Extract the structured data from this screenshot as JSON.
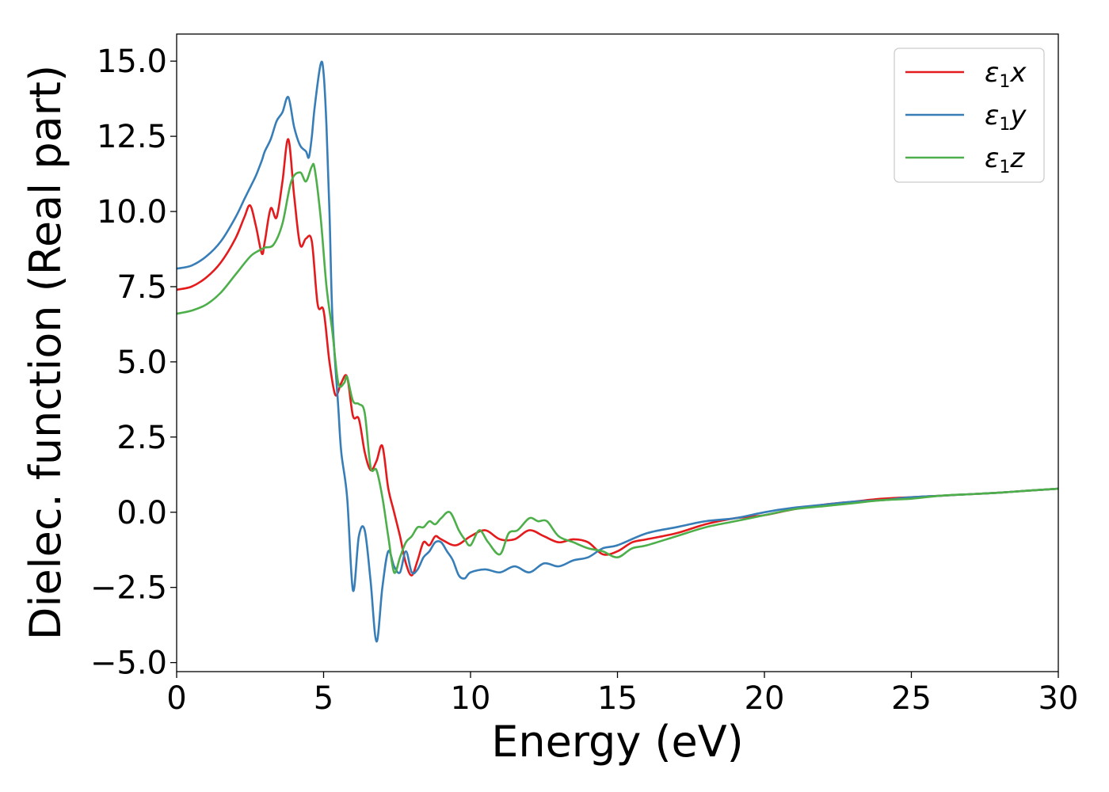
{
  "chart_data": {
    "type": "line",
    "xlabel": "Energy (eV)",
    "ylabel": "Dielec. function (Real part)",
    "xlim": [
      0,
      30
    ],
    "ylim": [
      -5.3,
      15.9
    ],
    "xticks": [
      0,
      5,
      10,
      15,
      20,
      25,
      30
    ],
    "xtick_labels": [
      "0",
      "5",
      "10",
      "15",
      "20",
      "25",
      "30"
    ],
    "yticks": [
      -5.0,
      -2.5,
      0.0,
      2.5,
      5.0,
      7.5,
      10.0,
      12.5,
      15.0
    ],
    "ytick_labels": [
      "−5.0",
      "−2.5",
      "0.0",
      "2.5",
      "5.0",
      "7.5",
      "10.0",
      "12.5",
      "15.0"
    ],
    "grid": false,
    "legend_position": "top-right",
    "series": [
      {
        "name": "ε₁x",
        "name_base": "ε",
        "name_sub": "1",
        "name_var": "x",
        "color": "#e41a1c",
        "x": [
          0,
          0.5,
          1,
          1.5,
          2,
          2.3,
          2.5,
          2.7,
          2.9,
          3.0,
          3.2,
          3.4,
          3.6,
          3.8,
          4.0,
          4.2,
          4.4,
          4.6,
          4.8,
          5.0,
          5.2,
          5.4,
          5.6,
          5.8,
          6.0,
          6.2,
          6.4,
          6.6,
          6.8,
          7.0,
          7.2,
          7.4,
          7.6,
          7.8,
          8.0,
          8.2,
          8.4,
          8.6,
          8.8,
          9.0,
          9.5,
          10.0,
          10.5,
          11.0,
          11.5,
          12.0,
          12.5,
          13.0,
          13.5,
          14.0,
          14.5,
          15.0,
          15.5,
          16.0,
          17.0,
          18.0,
          19.0,
          20.0,
          21.0,
          22.0,
          23.0,
          24.0,
          25.0,
          26.0,
          27.0,
          28.0,
          29.0,
          30.0
        ],
        "y": [
          7.4,
          7.5,
          7.8,
          8.3,
          9.1,
          9.8,
          10.2,
          9.5,
          8.6,
          9.0,
          10.1,
          9.8,
          11.0,
          12.4,
          10.5,
          8.9,
          9.1,
          9.0,
          6.9,
          6.7,
          5.0,
          3.9,
          4.3,
          4.5,
          3.2,
          3.1,
          2.0,
          1.4,
          1.7,
          2.2,
          0.8,
          0.0,
          -0.8,
          -1.7,
          -2.1,
          -1.6,
          -1.0,
          -1.1,
          -0.8,
          -0.9,
          -1.1,
          -0.8,
          -0.6,
          -0.9,
          -0.9,
          -0.6,
          -0.8,
          -1.0,
          -0.9,
          -1.0,
          -1.4,
          -1.3,
          -1.0,
          -0.9,
          -0.7,
          -0.4,
          -0.2,
          -0.1,
          0.1,
          0.25,
          0.35,
          0.45,
          0.5,
          0.55,
          0.6,
          0.65,
          0.72,
          0.78
        ]
      },
      {
        "name": "ε₁y",
        "name_base": "ε",
        "name_sub": "1",
        "name_var": "y",
        "color": "#377eb8",
        "x": [
          0,
          0.5,
          1,
          1.5,
          2,
          2.3,
          2.5,
          2.7,
          2.9,
          3.0,
          3.2,
          3.4,
          3.6,
          3.8,
          4.0,
          4.2,
          4.4,
          4.5,
          4.6,
          4.7,
          4.9,
          5.0,
          5.1,
          5.2,
          5.3,
          5.5,
          5.6,
          5.8,
          6.0,
          6.2,
          6.4,
          6.6,
          6.8,
          7.0,
          7.2,
          7.4,
          7.6,
          7.8,
          8.0,
          8.2,
          8.4,
          8.6,
          8.8,
          9.0,
          9.2,
          9.4,
          9.6,
          9.8,
          10.0,
          10.5,
          11.0,
          11.5,
          12.0,
          12.5,
          13.0,
          13.5,
          14.0,
          14.5,
          15.0,
          16.0,
          17.0,
          18.0,
          19.0,
          20.0,
          21.0,
          22.0,
          23.0,
          24.0,
          25.0,
          26.0,
          27.0,
          28.0,
          29.0,
          30.0
        ],
        "y": [
          8.1,
          8.2,
          8.5,
          9.0,
          9.8,
          10.4,
          10.8,
          11.2,
          11.7,
          12.0,
          12.4,
          13.0,
          13.3,
          13.8,
          12.8,
          12.2,
          12.0,
          11.8,
          12.5,
          13.5,
          14.9,
          14.6,
          12.8,
          10.0,
          6.5,
          3.5,
          2.0,
          0.5,
          -2.6,
          -0.8,
          -0.6,
          -2.3,
          -4.3,
          -2.5,
          -1.3,
          -1.8,
          -2.0,
          -1.3,
          -2.0,
          -1.9,
          -1.5,
          -1.3,
          -1.0,
          -1.0,
          -1.3,
          -1.6,
          -2.1,
          -2.2,
          -2.0,
          -1.9,
          -2.0,
          -1.8,
          -2.0,
          -1.7,
          -1.8,
          -1.6,
          -1.5,
          -1.2,
          -1.1,
          -0.7,
          -0.5,
          -0.3,
          -0.2,
          0.0,
          0.15,
          0.25,
          0.35,
          0.4,
          0.5,
          0.55,
          0.6,
          0.65,
          0.72,
          0.78
        ]
      },
      {
        "name": "ε₁z",
        "name_base": "ε",
        "name_sub": "1",
        "name_var": "z",
        "color": "#4daf4a",
        "x": [
          0,
          0.5,
          1,
          1.5,
          2,
          2.5,
          2.8,
          3.0,
          3.3,
          3.6,
          3.9,
          4.2,
          4.4,
          4.6,
          4.7,
          4.9,
          5.1,
          5.3,
          5.5,
          5.7,
          5.8,
          6.0,
          6.2,
          6.4,
          6.6,
          6.8,
          7.0,
          7.2,
          7.4,
          7.6,
          7.8,
          8.0,
          8.2,
          8.4,
          8.6,
          8.8,
          9.0,
          9.3,
          9.6,
          9.8,
          10.0,
          10.3,
          10.6,
          11.0,
          11.3,
          11.6,
          12.0,
          12.3,
          12.6,
          13.0,
          13.5,
          14.0,
          14.5,
          15.0,
          15.5,
          16.0,
          17.0,
          18.0,
          19.0,
          20.0,
          21.0,
          22.0,
          23.0,
          24.0,
          25.0,
          26.0,
          27.0,
          28.0,
          29.0,
          30.0
        ],
        "y": [
          6.6,
          6.7,
          6.9,
          7.3,
          7.9,
          8.5,
          8.7,
          8.8,
          8.9,
          9.6,
          11.0,
          11.3,
          11.0,
          11.5,
          11.4,
          9.8,
          7.5,
          6.0,
          4.3,
          4.3,
          4.5,
          3.7,
          3.6,
          3.3,
          1.5,
          1.4,
          0.5,
          -0.8,
          -2.0,
          -1.5,
          -1.0,
          -0.8,
          -0.5,
          -0.5,
          -0.3,
          -0.4,
          -0.2,
          0.0,
          -0.6,
          -0.9,
          -1.1,
          -0.6,
          -1.0,
          -1.4,
          -0.7,
          -0.6,
          -0.2,
          -0.3,
          -0.3,
          -0.8,
          -1.0,
          -1.2,
          -1.3,
          -1.5,
          -1.2,
          -1.1,
          -0.8,
          -0.5,
          -0.3,
          -0.1,
          0.1,
          0.2,
          0.3,
          0.4,
          0.45,
          0.55,
          0.6,
          0.65,
          0.72,
          0.78
        ]
      }
    ]
  }
}
